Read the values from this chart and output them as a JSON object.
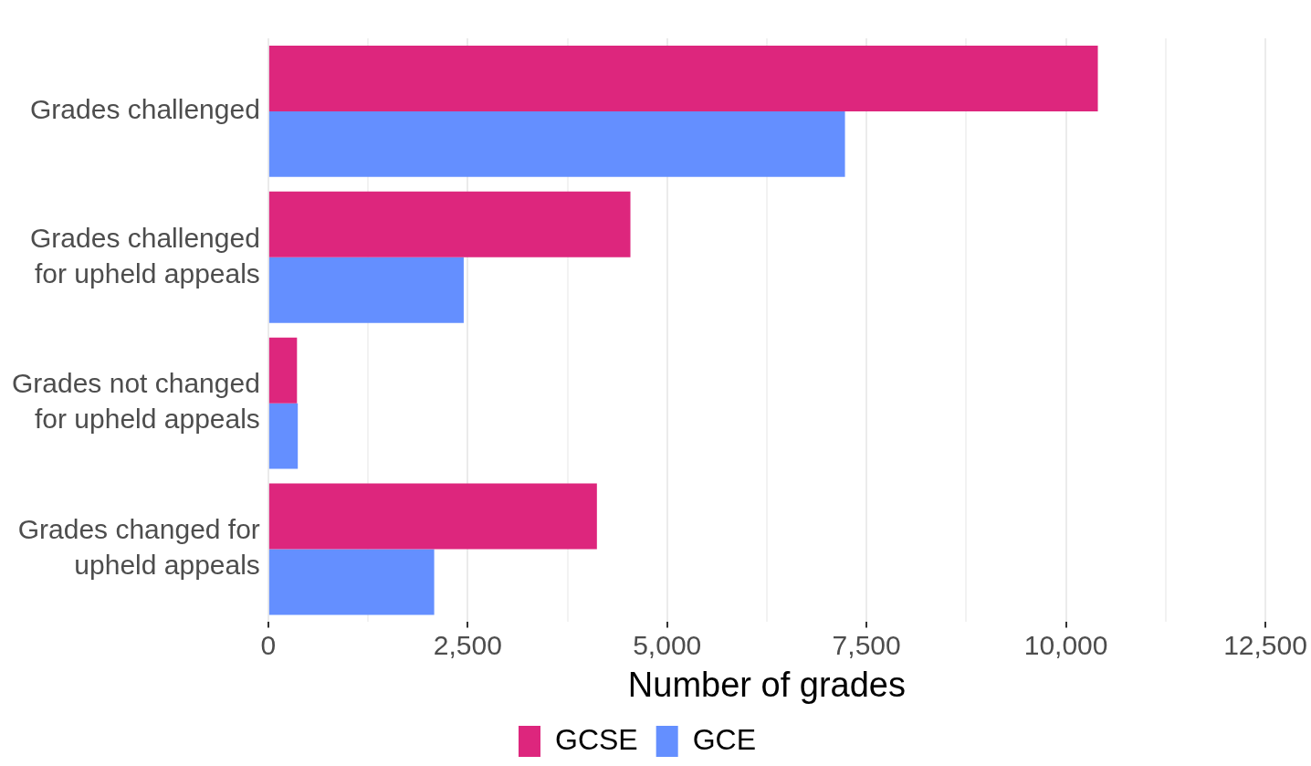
{
  "chart_data": {
    "type": "bar",
    "orientation": "horizontal",
    "xlabel": "Number of grades",
    "categories": [
      "Grades challenged",
      "Grades challenged for upheld appeals",
      "Grades not changed for upheld appeals",
      "Grades changed for upheld appeals"
    ],
    "series": [
      {
        "name": "GCSE",
        "color": "#dd267d",
        "values": [
          10400,
          4540,
          360,
          4120
        ]
      },
      {
        "name": "GCE",
        "color": "#648fff",
        "values": [
          7230,
          2450,
          370,
          2080
        ]
      }
    ],
    "xlim": [
      0,
      12500
    ],
    "xticks": [
      0,
      {
        "value": 1250,
        "label": null
      },
      {
        "value": 2500,
        "label": "2,500"
      },
      {
        "value": 3750,
        "label": null
      },
      {
        "value": 5000,
        "label": "5,000"
      },
      {
        "value": 6250,
        "label": null
      },
      {
        "value": 7500,
        "label": "7,500"
      },
      {
        "value": 8750,
        "label": null
      },
      {
        "value": 10000,
        "label": "10,000"
      },
      {
        "value": 11250,
        "label": null
      },
      {
        "value": 12500,
        "label": "12,500"
      }
    ],
    "grid": "x",
    "legend": "bottom"
  }
}
